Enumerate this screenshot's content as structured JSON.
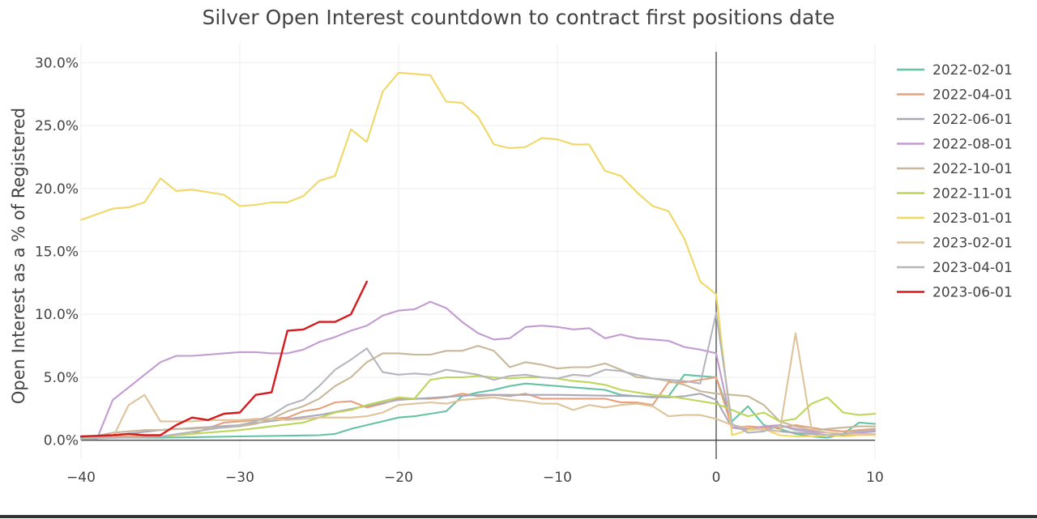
{
  "chart_data": {
    "type": "line",
    "title": "Silver Open Interest countdown to contract first positions date",
    "xlabel": "",
    "ylabel": "Open Interest as a % of Registered",
    "xlim": [
      -40,
      10
    ],
    "ylim": [
      -1.5,
      31.5
    ],
    "xticks": [
      -40,
      -30,
      -20,
      -10,
      0,
      10
    ],
    "xtick_labels": [
      "−40",
      "−30",
      "−20",
      "−10",
      "0",
      "10"
    ],
    "yticks": [
      0,
      5,
      10,
      15,
      20,
      25,
      30
    ],
    "ytick_labels": [
      "0.0%",
      "5.0%",
      "10.0%",
      "15.0%",
      "20.0%",
      "25.0%",
      "30.0%"
    ],
    "grid": true,
    "legend_position": "right",
    "vline_x": 0,
    "series": [
      {
        "name": "2022-02-01",
        "color": "#66c2a5",
        "x": [
          -40,
          -35,
          -30,
          -25,
          -24,
          -23,
          -22,
          -21,
          -20,
          -19,
          -18,
          -17,
          -16,
          -15,
          -14,
          -13,
          -12,
          -11,
          -10,
          -9,
          -8,
          -7,
          -6,
          -5,
          -4,
          -3,
          -2,
          -1,
          0,
          1,
          2,
          3,
          4,
          5,
          6,
          7,
          8,
          9,
          10
        ],
        "y": [
          0.2,
          0.2,
          0.3,
          0.4,
          0.5,
          0.9,
          1.2,
          1.5,
          1.8,
          1.9,
          2.1,
          2.3,
          3.5,
          3.8,
          4.0,
          4.3,
          4.5,
          4.4,
          4.3,
          4.2,
          4.1,
          4.0,
          3.6,
          3.5,
          3.4,
          3.5,
          5.2,
          5.1,
          5.0,
          1.5,
          2.7,
          1.2,
          0.9,
          0.5,
          0.3,
          0.2,
          0.5,
          1.4,
          1.3
        ]
      },
      {
        "name": "2022-04-01",
        "color": "#e8a07a",
        "x": [
          -40,
          -35,
          -33,
          -31,
          -30,
          -28,
          -27,
          -26,
          -25,
          -24,
          -23,
          -22,
          -21,
          -20,
          -19,
          -18,
          -17,
          -16,
          -15,
          -14,
          -13,
          -12,
          -11,
          -10,
          -9,
          -8,
          -7,
          -6,
          -5,
          -4,
          -3,
          -2,
          -1,
          0,
          1,
          2,
          3,
          4,
          5,
          6,
          7,
          8,
          9,
          10
        ],
        "y": [
          0.3,
          0.3,
          0.5,
          1.4,
          1.5,
          1.7,
          1.8,
          2.3,
          2.5,
          3.0,
          3.1,
          2.6,
          2.9,
          3.3,
          3.3,
          3.3,
          3.4,
          3.7,
          3.5,
          3.6,
          3.5,
          3.7,
          3.3,
          3.3,
          3.3,
          3.3,
          3.3,
          3.0,
          3.0,
          2.8,
          4.6,
          4.6,
          4.8,
          5.0,
          1.0,
          1.1,
          1.0,
          1.0,
          1.2,
          1.0,
          0.8,
          0.7,
          0.8,
          0.9
        ]
      },
      {
        "name": "2022-06-01",
        "color": "#a9a9b9",
        "x": [
          -40,
          -35,
          -30,
          -25,
          -20,
          -15,
          -10,
          -5,
          -3,
          -2,
          -1,
          0,
          1,
          2,
          3,
          4,
          5,
          6,
          7,
          8,
          9,
          10
        ],
        "y": [
          0.1,
          0.8,
          1.2,
          2.0,
          3.2,
          3.6,
          3.6,
          3.5,
          3.4,
          3.5,
          3.7,
          3.2,
          1.0,
          0.8,
          0.9,
          0.7,
          0.6,
          0.5,
          0.4,
          0.4,
          0.5,
          0.4
        ]
      },
      {
        "name": "2022-08-01",
        "color": "#c29bd0",
        "x": [
          -40,
          -39,
          -38,
          -37,
          -36,
          -35,
          -34,
          -33,
          -32,
          -31,
          -30,
          -29,
          -28,
          -27,
          -26,
          -25,
          -24,
          -23,
          -22,
          -21,
          -20,
          -19,
          -18,
          -17,
          -16,
          -15,
          -14,
          -13,
          -12,
          -11,
          -10,
          -9,
          -8,
          -7,
          -6,
          -5,
          -4,
          -3,
          -2,
          -1,
          0,
          1,
          2,
          3,
          4,
          5,
          6,
          7,
          8,
          9,
          10
        ],
        "y": [
          0.1,
          0.1,
          3.2,
          4.2,
          5.2,
          6.2,
          6.7,
          6.7,
          6.8,
          6.9,
          7.0,
          7.0,
          6.9,
          6.9,
          7.2,
          7.8,
          8.2,
          8.7,
          9.1,
          9.9,
          10.3,
          10.4,
          11.0,
          10.5,
          9.4,
          8.5,
          8.0,
          8.1,
          9.0,
          9.1,
          9.0,
          8.8,
          8.9,
          8.1,
          8.4,
          8.1,
          8.0,
          7.9,
          7.4,
          7.2,
          6.9,
          1.0,
          0.9,
          1.1,
          1.2,
          0.9,
          0.7,
          0.6,
          0.5,
          0.6,
          0.7
        ]
      },
      {
        "name": "2022-10-01",
        "color": "#c8b89a",
        "x": [
          -40,
          -38,
          -36,
          -35,
          -34,
          -33,
          -32,
          -31,
          -30,
          -29,
          -28,
          -27,
          -26,
          -25,
          -24,
          -23,
          -22,
          -21,
          -20,
          -19,
          -18,
          -17,
          -16,
          -15,
          -14,
          -13,
          -12,
          -11,
          -10,
          -9,
          -8,
          -7,
          -6,
          -5,
          -4,
          -3,
          -2,
          -1,
          0,
          1,
          2,
          3,
          4,
          5,
          6,
          7,
          8,
          9,
          10
        ],
        "y": [
          0.1,
          0.6,
          0.8,
          0.8,
          0.9,
          0.9,
          1.0,
          1.0,
          1.1,
          1.3,
          1.7,
          2.3,
          2.7,
          3.3,
          4.3,
          5.0,
          6.2,
          6.9,
          6.9,
          6.8,
          6.8,
          7.1,
          7.1,
          7.5,
          7.1,
          5.8,
          6.2,
          6.0,
          5.7,
          5.8,
          5.8,
          6.1,
          5.6,
          5.0,
          4.9,
          4.7,
          4.4,
          3.9,
          3.7,
          3.6,
          3.5,
          2.8,
          1.5,
          1.1,
          0.8,
          0.9,
          1.0,
          1.1,
          1.1
        ]
      },
      {
        "name": "2022-11-01",
        "color": "#bcd65a",
        "x": [
          -40,
          -35,
          -30,
          -28,
          -26,
          -25,
          -24,
          -23,
          -22,
          -21,
          -20,
          -19,
          -18,
          -17,
          -16,
          -15,
          -14,
          -13,
          -12,
          -11,
          -10,
          -9,
          -8,
          -7,
          -6,
          -5,
          -4,
          -3,
          -2,
          -1,
          0,
          1,
          2,
          3,
          4,
          5,
          6,
          7,
          8,
          9,
          10
        ],
        "y": [
          0.1,
          0.3,
          0.8,
          1.1,
          1.4,
          1.8,
          2.2,
          2.4,
          2.8,
          3.1,
          3.4,
          3.3,
          4.8,
          5.0,
          5.0,
          5.1,
          5.0,
          4.9,
          5.0,
          5.0,
          4.9,
          4.7,
          4.6,
          4.4,
          4.0,
          3.8,
          3.6,
          3.5,
          3.3,
          3.1,
          2.9,
          2.4,
          1.9,
          2.2,
          1.5,
          1.7,
          2.9,
          3.4,
          2.2,
          2.0,
          2.1
        ]
      },
      {
        "name": "2023-01-01",
        "color": "#f0d766",
        "x": [
          -40,
          -38,
          -37,
          -36,
          -35,
          -34,
          -33,
          -32,
          -31,
          -30,
          -29,
          -28,
          -27,
          -26,
          -25,
          -24,
          -23,
          -22,
          -21,
          -20,
          -19,
          -18,
          -17,
          -16,
          -15,
          -14,
          -13,
          -12,
          -11,
          -10,
          -9,
          -8,
          -7,
          -6,
          -5,
          -4,
          -3,
          -2,
          -1,
          0,
          1,
          2,
          3,
          4,
          5,
          6,
          7,
          8,
          9,
          10
        ],
        "y": [
          17.5,
          18.4,
          18.5,
          18.9,
          20.8,
          19.8,
          19.9,
          19.7,
          19.5,
          18.6,
          18.7,
          18.9,
          18.9,
          19.4,
          20.6,
          21.0,
          24.7,
          23.7,
          27.7,
          29.2,
          29.1,
          29.0,
          26.9,
          26.8,
          25.7,
          23.5,
          23.2,
          23.3,
          24.0,
          23.9,
          23.5,
          23.5,
          21.4,
          21.0,
          19.7,
          18.6,
          18.2,
          16.0,
          12.6,
          11.6,
          0.4,
          0.8,
          0.9,
          0.4,
          0.3,
          0.3,
          0.4,
          0.3,
          0.4,
          0.4
        ]
      },
      {
        "name": "2023-02-01",
        "color": "#dec39b",
        "x": [
          -40,
          -38,
          -37,
          -36,
          -35,
          -34,
          -33,
          -32,
          -31,
          -30,
          -29,
          -28,
          -27,
          -26,
          -25,
          -24,
          -23,
          -22,
          -21,
          -20,
          -19,
          -18,
          -17,
          -16,
          -15,
          -14,
          -13,
          -12,
          -11,
          -10,
          -9,
          -8,
          -7,
          -6,
          -5,
          -4,
          -3,
          -2,
          -1,
          0,
          1,
          2,
          3,
          4,
          5,
          6,
          7,
          8,
          9,
          10
        ],
        "y": [
          0.1,
          0.2,
          2.8,
          3.6,
          1.5,
          1.5,
          1.5,
          1.6,
          1.6,
          1.6,
          1.7,
          1.7,
          1.6,
          1.7,
          1.8,
          1.8,
          1.8,
          1.9,
          2.2,
          2.8,
          2.9,
          3.0,
          2.9,
          3.2,
          3.3,
          3.4,
          3.2,
          3.1,
          2.9,
          2.9,
          2.4,
          2.8,
          2.6,
          2.8,
          2.9,
          2.7,
          1.9,
          2.0,
          2.0,
          1.7,
          1.2,
          1.0,
          0.8,
          0.7,
          8.5,
          0.9,
          0.6,
          0.5,
          0.5,
          0.5
        ]
      },
      {
        "name": "2023-04-01",
        "color": "#b5b5bd",
        "x": [
          -40,
          -35,
          -30,
          -29,
          -28,
          -27,
          -26,
          -25,
          -24,
          -23,
          -22,
          -21,
          -20,
          -19,
          -18,
          -17,
          -16,
          -15,
          -14,
          -13,
          -12,
          -11,
          -10,
          -9,
          -8,
          -7,
          -6,
          -5,
          -4,
          -3,
          -2,
          -1,
          0,
          1,
          2,
          3,
          4,
          5,
          6,
          7,
          8,
          9,
          10
        ],
        "y": [
          0.1,
          0.3,
          1.2,
          1.5,
          2.0,
          2.8,
          3.2,
          4.3,
          5.6,
          6.4,
          7.3,
          5.4,
          5.2,
          5.3,
          5.2,
          5.6,
          5.4,
          5.2,
          4.8,
          5.1,
          5.2,
          5.0,
          4.9,
          5.2,
          5.1,
          5.6,
          5.5,
          5.2,
          4.9,
          4.8,
          4.7,
          4.5,
          10.1,
          1.3,
          0.6,
          0.7,
          1.2,
          0.8,
          0.6,
          0.4,
          0.5,
          0.7,
          0.8
        ]
      },
      {
        "name": "2023-06-01",
        "color": "#d7191c",
        "x": [
          -40,
          -38,
          -37,
          -36,
          -35,
          -34,
          -33,
          -32,
          -31,
          -30,
          -29,
          -28,
          -27,
          -26,
          -25,
          -24,
          -23,
          -22
        ],
        "y": [
          0.3,
          0.4,
          0.5,
          0.4,
          0.4,
          1.2,
          1.8,
          1.6,
          2.1,
          2.2,
          3.6,
          3.8,
          8.7,
          8.8,
          9.4,
          9.4,
          10.0,
          12.6
        ]
      }
    ]
  }
}
